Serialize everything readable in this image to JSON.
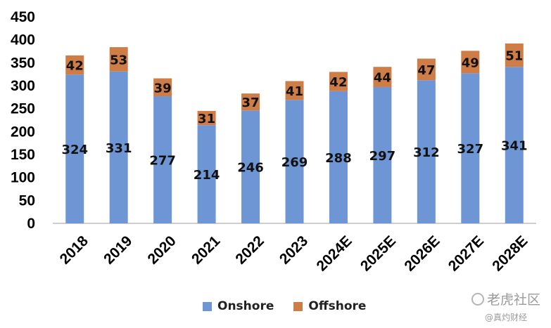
{
  "chart_data": {
    "type": "bar",
    "stacked": true,
    "categories": [
      "2018",
      "2019",
      "2020",
      "2021",
      "2022",
      "2023",
      "2024E",
      "2025E",
      "2026E",
      "2027E",
      "2028E"
    ],
    "series": [
      {
        "name": "Onshore",
        "color": "#6f96d4",
        "values": [
          324,
          331,
          277,
          214,
          246,
          269,
          288,
          297,
          312,
          327,
          341
        ]
      },
      {
        "name": "Offshore",
        "color": "#cf7d46",
        "values": [
          42,
          53,
          39,
          31,
          37,
          41,
          42,
          44,
          47,
          49,
          51
        ]
      }
    ],
    "y_ticks": [
      "0",
      "50",
      "100",
      "150",
      "200",
      "250",
      "300",
      "350",
      "400",
      "450"
    ],
    "ylim": [
      0,
      450
    ],
    "grid": false,
    "legend_position": "bottom"
  },
  "legend": {
    "items": [
      "Onshore",
      "Offshore"
    ]
  },
  "watermark": {
    "main": "老虎社区",
    "sub": "@真灼财经"
  }
}
